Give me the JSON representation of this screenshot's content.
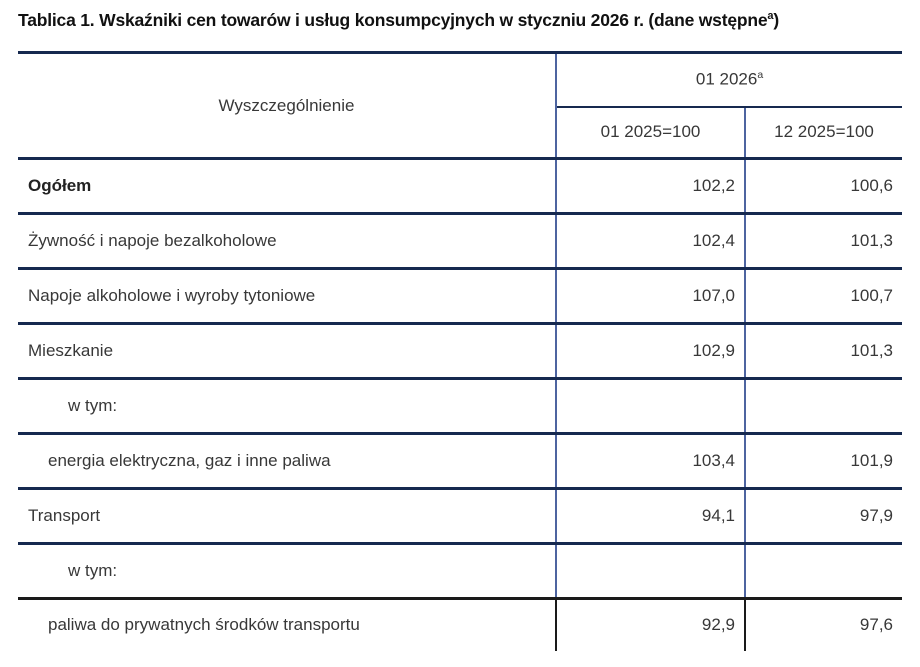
{
  "title": {
    "text": "Tablica 1. Wskaźniki cen towarów i usług konsumpcyjnych w styczniu 2026 r. (dane wstępne",
    "sup": "a",
    "suffix": ")"
  },
  "table": {
    "header": {
      "col1": "Wyszczególnienie",
      "group": "01 2026",
      "group_sup": "a",
      "sub1": "01 2025=100",
      "sub2": "12 2025=100"
    },
    "rows": [
      {
        "label": "Ogółem",
        "v1": "102,2",
        "v2": "100,6"
      },
      {
        "label": "Żywność i napoje bezalkoholowe",
        "v1": "102,4",
        "v2": "101,3"
      },
      {
        "label": "Napoje alkoholowe i wyroby tytoniowe",
        "v1": "107,0",
        "v2": "100,7"
      },
      {
        "label": "Mieszkanie",
        "v1": "102,9",
        "v2": "101,3"
      },
      {
        "label": "w tym:",
        "v1": "",
        "v2": ""
      },
      {
        "label": "energia elektryczna, gaz i inne paliwa",
        "v1": "103,4",
        "v2": "101,9"
      },
      {
        "label": "Transport",
        "v1": "94,1",
        "v2": "97,9"
      },
      {
        "label": "w tym:",
        "v1": "",
        "v2": ""
      },
      {
        "label": "paliwa do prywatnych środków transportu",
        "v1": "92,9",
        "v2": "97,6"
      }
    ]
  },
  "colors": {
    "border_navy": "#16294f",
    "border_vertical": "#4d64a0",
    "border_black": "#1a1a1a",
    "text": "#383838",
    "title": "#111111",
    "background": "#ffffff"
  }
}
